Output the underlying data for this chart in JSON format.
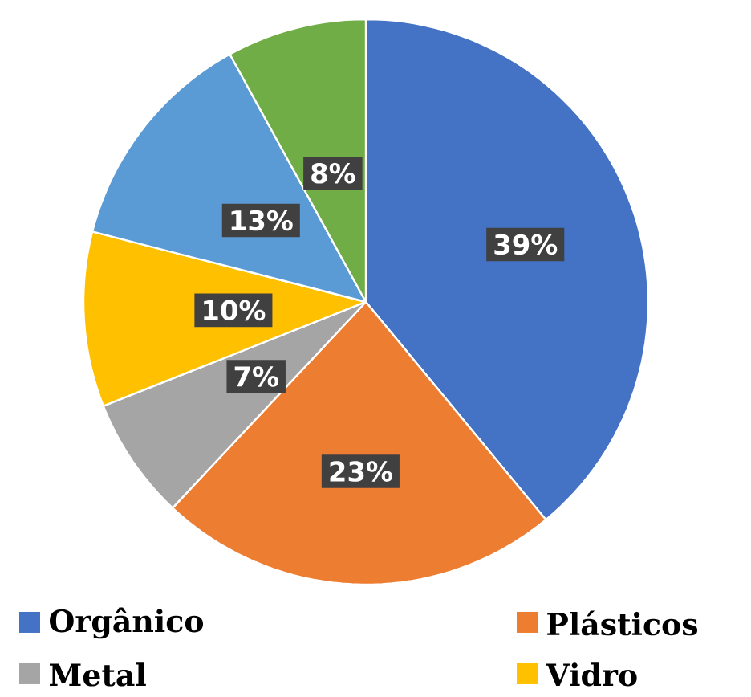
{
  "chart_data": {
    "type": "pie",
    "categories": [
      "Orgânico",
      "Plásticos",
      "Metal",
      "Vidro",
      null,
      null
    ],
    "values": [
      39,
      23,
      7,
      10,
      13,
      8
    ],
    "value_labels": [
      "39%",
      "23%",
      "7%",
      "10%",
      "13%",
      "8%"
    ],
    "colors": [
      "#4472c4",
      "#ed7d31",
      "#a5a5a5",
      "#ffc000",
      "#5b9bd5",
      "#70ad47"
    ],
    "legend": "bottom"
  }
}
